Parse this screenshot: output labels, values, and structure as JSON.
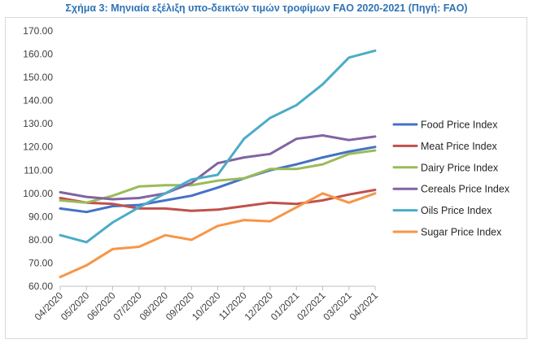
{
  "caption": "Σχήμα 3: Μηνιαία εξέλιξη υπο-δεικτών τιμών τροφίμων FAO 2020-2021 (Πηγή: FAO)",
  "chart_data": {
    "type": "line",
    "title": "Σχήμα 3: Μηνιαία εξέλιξη υπο-δεικτών τιμών τροφίμων FAO 2020-2021 (Πηγή: FAO)",
    "xlabel": "",
    "ylabel": "",
    "ylim": [
      60,
      170
    ],
    "yticks": [
      "60.00",
      "70.00",
      "80.00",
      "90.00",
      "100.00",
      "110.00",
      "120.00",
      "130.00",
      "140.00",
      "150.00",
      "160.00",
      "170.00"
    ],
    "grid": false,
    "legend_position": "right",
    "categories": [
      "04/2020",
      "05/2020",
      "06/2020",
      "07/2020",
      "08/2020",
      "09/2020",
      "10/2020",
      "11/2020",
      "12/2020",
      "01/2021",
      "02/2021",
      "03/2021",
      "04/2021"
    ],
    "series": [
      {
        "name": "Food Price Index",
        "color": "#4472c4",
        "values": [
          93.5,
          92.0,
          94.5,
          95.0,
          97.0,
          99.0,
          102.5,
          106.5,
          110.0,
          112.5,
          115.5,
          118.0,
          120.0
        ]
      },
      {
        "name": "Meat Price Index",
        "color": "#c0504d",
        "values": [
          98.0,
          96.0,
          95.5,
          93.5,
          93.5,
          92.5,
          93.0,
          94.5,
          96.0,
          95.5,
          97.0,
          99.5,
          101.5
        ]
      },
      {
        "name": "Dairy Price Index",
        "color": "#9bbb59",
        "values": [
          97.0,
          96.0,
          99.0,
          103.0,
          103.5,
          103.5,
          105.5,
          106.5,
          110.5,
          110.5,
          112.5,
          117.0,
          118.5
        ]
      },
      {
        "name": "Cereals Price Index",
        "color": "#8064a2",
        "values": [
          100.5,
          98.5,
          97.5,
          98.0,
          100.0,
          104.5,
          113.0,
          115.5,
          117.0,
          123.5,
          125.0,
          123.0,
          124.5
        ]
      },
      {
        "name": "Oils Price Index",
        "color": "#4bacc6",
        "values": [
          82.0,
          79.0,
          87.5,
          94.0,
          100.0,
          106.0,
          108.0,
          123.5,
          132.5,
          138.0,
          147.0,
          158.5,
          161.5
        ]
      },
      {
        "name": "Sugar Price Index",
        "color": "#f79646",
        "values": [
          64.0,
          69.0,
          76.0,
          77.0,
          82.0,
          80.0,
          86.0,
          88.5,
          88.0,
          94.0,
          100.0,
          96.0,
          100.0
        ]
      }
    ]
  }
}
